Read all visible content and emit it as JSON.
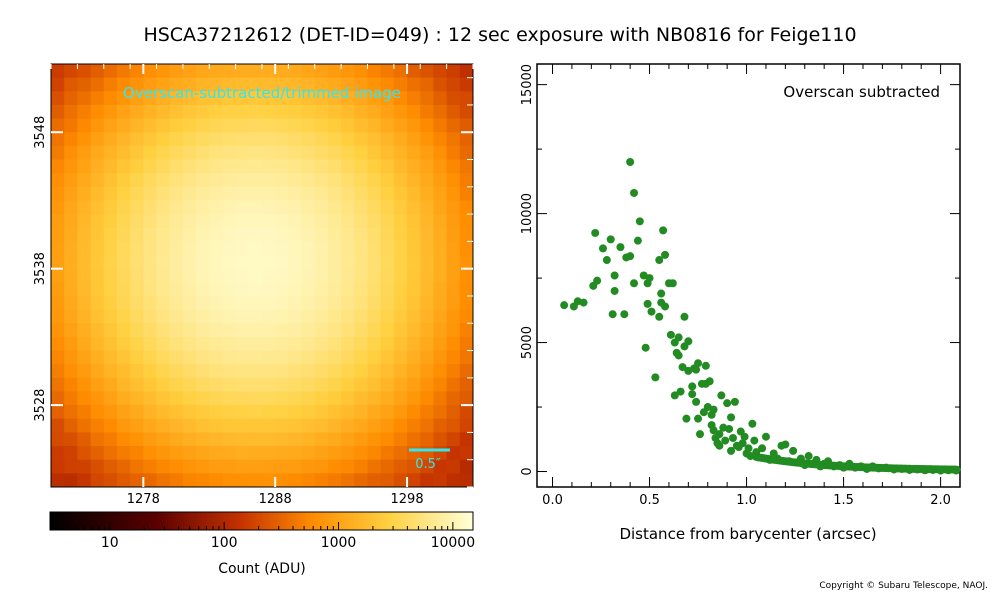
{
  "title": "HSCA37212612 (DET-ID=049) :  12 sec exposure with NB0816 for Feige110",
  "copyright": "Copyright © Subaru Telescope, NAOJ.",
  "chart_data": [
    {
      "type": "heatmap",
      "annotation": "Overscan-subtracted/trimmed image",
      "scale_label": "0.5″",
      "x_ticks": [
        "1278",
        "1288",
        "1298"
      ],
      "y_ticks": [
        "3548",
        "3538",
        "3528"
      ],
      "x_range": [
        1271,
        1303
      ],
      "y_range": [
        3522,
        3553
      ],
      "colorbar": {
        "label": "Count (ADU)",
        "scale": "log",
        "range": [
          3,
          15000
        ],
        "ticks": [
          "10",
          "100",
          "1000",
          "10000"
        ]
      },
      "colors": {
        "annotation": "#33e6ee",
        "scale_bar": "#33e6ee"
      }
    },
    {
      "type": "scatter",
      "annotation": "Overscan subtracted",
      "xlabel": "Distance from barycenter (arcsec)",
      "ylabel": "",
      "xlim": [
        -0.08,
        2.1
      ],
      "ylim": [
        -600,
        15800
      ],
      "x_ticks": [
        "0.0",
        "0.5",
        "1.0",
        "1.5",
        "2.0"
      ],
      "y_ticks": [
        "0",
        "5000",
        "10000",
        "15000"
      ],
      "marker_color": "#228b22",
      "points": [
        [
          0.06,
          6450
        ],
        [
          0.11,
          6400
        ],
        [
          0.13,
          6600
        ],
        [
          0.16,
          6550
        ],
        [
          0.21,
          7200
        ],
        [
          0.23,
          7400
        ],
        [
          0.22,
          9250
        ],
        [
          0.26,
          8650
        ],
        [
          0.28,
          8200
        ],
        [
          0.3,
          9000
        ],
        [
          0.31,
          6100
        ],
        [
          0.32,
          7600
        ],
        [
          0.32,
          7000
        ],
        [
          0.35,
          8700
        ],
        [
          0.37,
          6100
        ],
        [
          0.38,
          8300
        ],
        [
          0.4,
          12000
        ],
        [
          0.4,
          8350
        ],
        [
          0.42,
          10800
        ],
        [
          0.42,
          7300
        ],
        [
          0.44,
          8950
        ],
        [
          0.45,
          9700
        ],
        [
          0.47,
          7600
        ],
        [
          0.48,
          4800
        ],
        [
          0.49,
          7300
        ],
        [
          0.49,
          6500
        ],
        [
          0.5,
          7500
        ],
        [
          0.51,
          6200
        ],
        [
          0.53,
          3650
        ],
        [
          0.55,
          8200
        ],
        [
          0.55,
          6000
        ],
        [
          0.56,
          6900
        ],
        [
          0.56,
          6550
        ],
        [
          0.57,
          9350
        ],
        [
          0.58,
          8400
        ],
        [
          0.58,
          6400
        ],
        [
          0.6,
          7300
        ],
        [
          0.61,
          5300
        ],
        [
          0.62,
          7300
        ],
        [
          0.63,
          5000
        ],
        [
          0.63,
          2950
        ],
        [
          0.64,
          4600
        ],
        [
          0.65,
          5200
        ],
        [
          0.65,
          4500
        ],
        [
          0.66,
          3100
        ],
        [
          0.67,
          4050
        ],
        [
          0.68,
          4850
        ],
        [
          0.68,
          6000
        ],
        [
          0.69,
          2050
        ],
        [
          0.7,
          5050
        ],
        [
          0.7,
          3900
        ],
        [
          0.72,
          3000
        ],
        [
          0.72,
          3300
        ],
        [
          0.73,
          4000
        ],
        [
          0.74,
          2700
        ],
        [
          0.74,
          3950
        ],
        [
          0.75,
          4200
        ],
        [
          0.75,
          2050
        ],
        [
          0.76,
          1450
        ],
        [
          0.77,
          3400
        ],
        [
          0.78,
          2300
        ],
        [
          0.79,
          3400
        ],
        [
          0.79,
          4100
        ],
        [
          0.8,
          2500
        ],
        [
          0.81,
          3500
        ],
        [
          0.82,
          2200
        ],
        [
          0.82,
          1800
        ],
        [
          0.83,
          1600
        ],
        [
          0.83,
          2400
        ],
        [
          0.84,
          1300
        ],
        [
          0.85,
          1100
        ],
        [
          0.86,
          1450
        ],
        [
          0.86,
          1000
        ],
        [
          0.87,
          2950
        ],
        [
          0.88,
          1700
        ],
        [
          0.89,
          1200
        ],
        [
          0.9,
          2650
        ],
        [
          0.91,
          1650
        ],
        [
          0.92,
          800
        ],
        [
          0.92,
          2100
        ],
        [
          0.93,
          1300
        ],
        [
          0.94,
          2700
        ],
        [
          0.95,
          1000
        ],
        [
          0.96,
          950
        ],
        [
          0.97,
          1550
        ],
        [
          0.98,
          1100
        ],
        [
          0.99,
          1350
        ],
        [
          1.0,
          700
        ],
        [
          1.01,
          900
        ],
        [
          1.02,
          600
        ],
        [
          1.03,
          1850
        ],
        [
          1.04,
          1200
        ],
        [
          1.05,
          750
        ],
        [
          1.06,
          550
        ],
        [
          1.08,
          900
        ],
        [
          1.1,
          1350
        ],
        [
          1.12,
          450
        ],
        [
          1.14,
          700
        ],
        [
          1.16,
          500
        ],
        [
          1.18,
          1000
        ],
        [
          1.2,
          1050
        ],
        [
          1.22,
          400
        ],
        [
          1.24,
          800
        ],
        [
          1.26,
          350
        ],
        [
          1.28,
          500
        ],
        [
          1.3,
          250
        ],
        [
          1.32,
          600
        ],
        [
          1.34,
          300
        ],
        [
          1.36,
          450
        ],
        [
          1.38,
          200
        ],
        [
          1.4,
          300
        ],
        [
          1.42,
          400
        ],
        [
          1.45,
          200
        ],
        [
          1.48,
          250
        ],
        [
          1.5,
          150
        ],
        [
          1.53,
          300
        ],
        [
          1.56,
          150
        ],
        [
          1.59,
          200
        ],
        [
          1.62,
          100
        ],
        [
          1.65,
          200
        ],
        [
          1.68,
          120
        ],
        [
          1.72,
          150
        ],
        [
          1.76,
          80
        ],
        [
          1.8,
          100
        ],
        [
          1.84,
          60
        ],
        [
          1.88,
          80
        ],
        [
          1.92,
          50
        ],
        [
          1.96,
          60
        ],
        [
          2.0,
          40
        ],
        [
          2.04,
          50
        ],
        [
          2.08,
          40
        ]
      ]
    }
  ]
}
